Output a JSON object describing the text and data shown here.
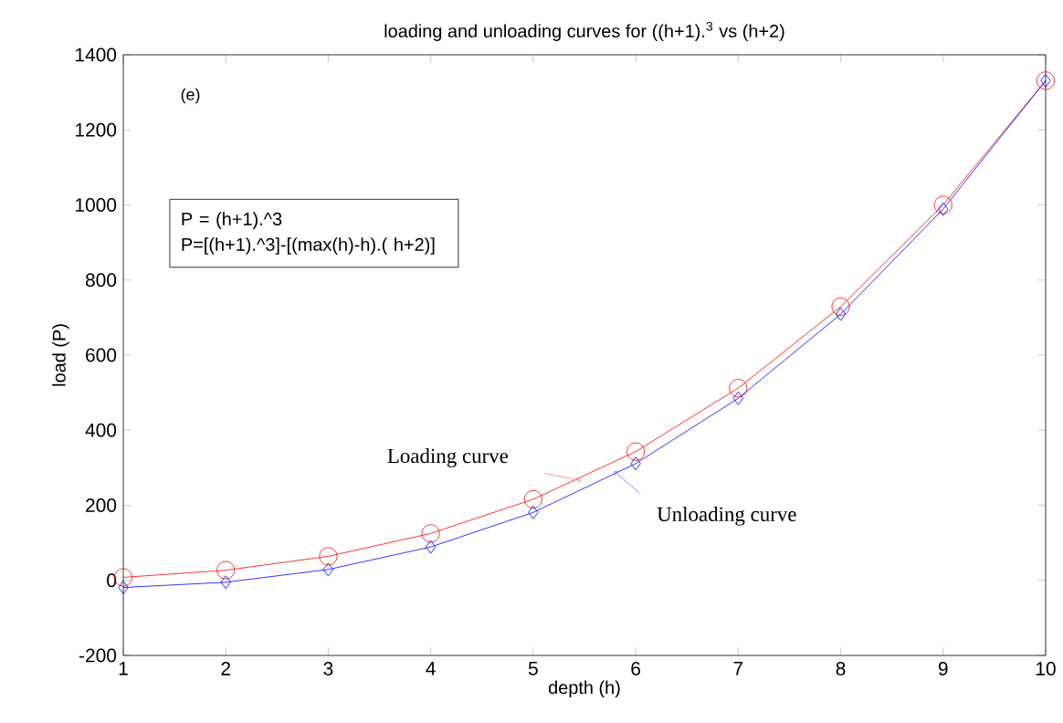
{
  "chart_data": {
    "type": "line",
    "title": "loading and unloading curves for ((h+1).$^{3}$ vs (h+2)",
    "xlabel": "depth (h)",
    "ylabel": "load (P)",
    "x": [
      1,
      2,
      3,
      4,
      5,
      6,
      7,
      8,
      9,
      10
    ],
    "series": [
      {
        "name": "Loading curve",
        "color": "#ff0000",
        "marker": "circle",
        "values": [
          8,
          27,
          64,
          125,
          216,
          343,
          512,
          729,
          1000,
          1331
        ]
      },
      {
        "name": "Unloading curve",
        "color": "#0000ff",
        "marker": "diamond",
        "values": [
          -19,
          -5,
          29,
          89,
          181,
          311,
          485,
          709,
          989,
          1331
        ]
      }
    ],
    "annotations": [
      "(e)",
      "P = (h+1).^3",
      "P=[(h+1).^3]-[(max(h)-h).( h+2)]"
    ],
    "xlim": [
      1,
      10
    ],
    "ylim": [
      -200,
      1400
    ],
    "xticks": [
      1,
      2,
      3,
      4,
      5,
      6,
      7,
      8,
      9,
      10
    ],
    "yticks": [
      -200,
      0,
      200,
      400,
      600,
      800,
      1000,
      1200,
      1400
    ],
    "grid": false,
    "line_style": "solid"
  }
}
